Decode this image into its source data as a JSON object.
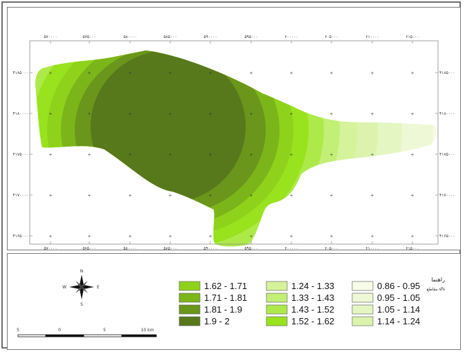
{
  "map": {
    "x_labels": [
      "۵۷۰۰۰۰",
      "۵۷۵۰۰۰",
      "۵۸۰۰۰۰",
      "۵۸۵۰۰۰",
      "۵۹۰۰۰۰",
      "۵۹۵۰۰۰",
      "۶۰۰۰۰۰",
      "۶۰۵۰۰۰",
      "۶۱۰۰۰۰",
      "۶۱۵۰۰۰"
    ],
    "y_labels": [
      "۴۱۸۵۰۰۰",
      "۴۱۸۰۰۰۰",
      "۴۱۷۵۰۰۰",
      "۴۱۷۰۰۰۰",
      "۴۱۶۵۰۰۰"
    ],
    "grid_marker": "+"
  },
  "legend": {
    "title": "راهنما",
    "subtitle": "مقاطع sfs",
    "classes": [
      {
        "label": "1.62 - 1.71",
        "color": "#8fd21c"
      },
      {
        "label": "1.71 - 1.81",
        "color": "#7cb51a"
      },
      {
        "label": "1.81 - 1.9",
        "color": "#69961b"
      },
      {
        "label": "1.9 - 2",
        "color": "#58781c"
      },
      {
        "label": "1.24 - 1.33",
        "color": "#d4f39a"
      },
      {
        "label": "1.33 - 1.43",
        "color": "#c2ef75"
      },
      {
        "label": "1.43 - 1.52",
        "color": "#aee94a"
      },
      {
        "label": "1.52 - 1.62",
        "color": "#99e21e"
      },
      {
        "label": "0.86 - 0.95",
        "color": "#f7fce8"
      },
      {
        "label": "0.95 - 1.05",
        "color": "#eef8d6"
      },
      {
        "label": "1.05 - 1.14",
        "color": "#e4f6c2"
      },
      {
        "label": "1.14 - 1.24",
        "color": "#dbf3ad"
      }
    ]
  },
  "north_arrow": {
    "n": "N",
    "s": "S",
    "e": "E",
    "w": "W"
  },
  "scale_bar": {
    "labels": [
      "5",
      "0",
      "5",
      "10 km"
    ]
  }
}
